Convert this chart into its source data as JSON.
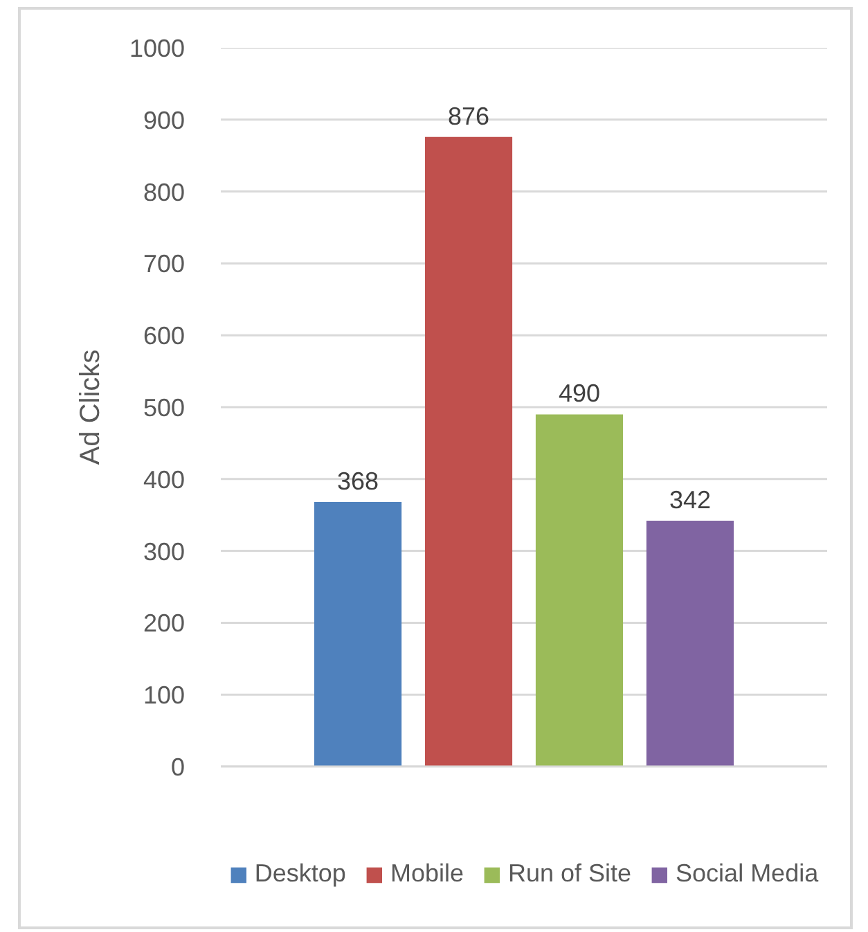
{
  "chart_data": {
    "type": "bar",
    "ylabel": "Ad Clicks",
    "categories": [
      null
    ],
    "series": [
      {
        "name": "Desktop",
        "color": "#4f81bd",
        "values": [
          368
        ]
      },
      {
        "name": "Mobile",
        "color": "#c0504d",
        "values": [
          876
        ]
      },
      {
        "name": "Run of Site",
        "color": "#9bbb59",
        "values": [
          490
        ]
      },
      {
        "name": "Social Media",
        "color": "#8064a2",
        "values": [
          342
        ]
      }
    ],
    "ylim": [
      0,
      1000
    ],
    "yticks": [
      0,
      100,
      200,
      300,
      400,
      500,
      600,
      700,
      800,
      900,
      1000
    ],
    "grid": "y",
    "legend": "bottom",
    "data_labels": true
  }
}
